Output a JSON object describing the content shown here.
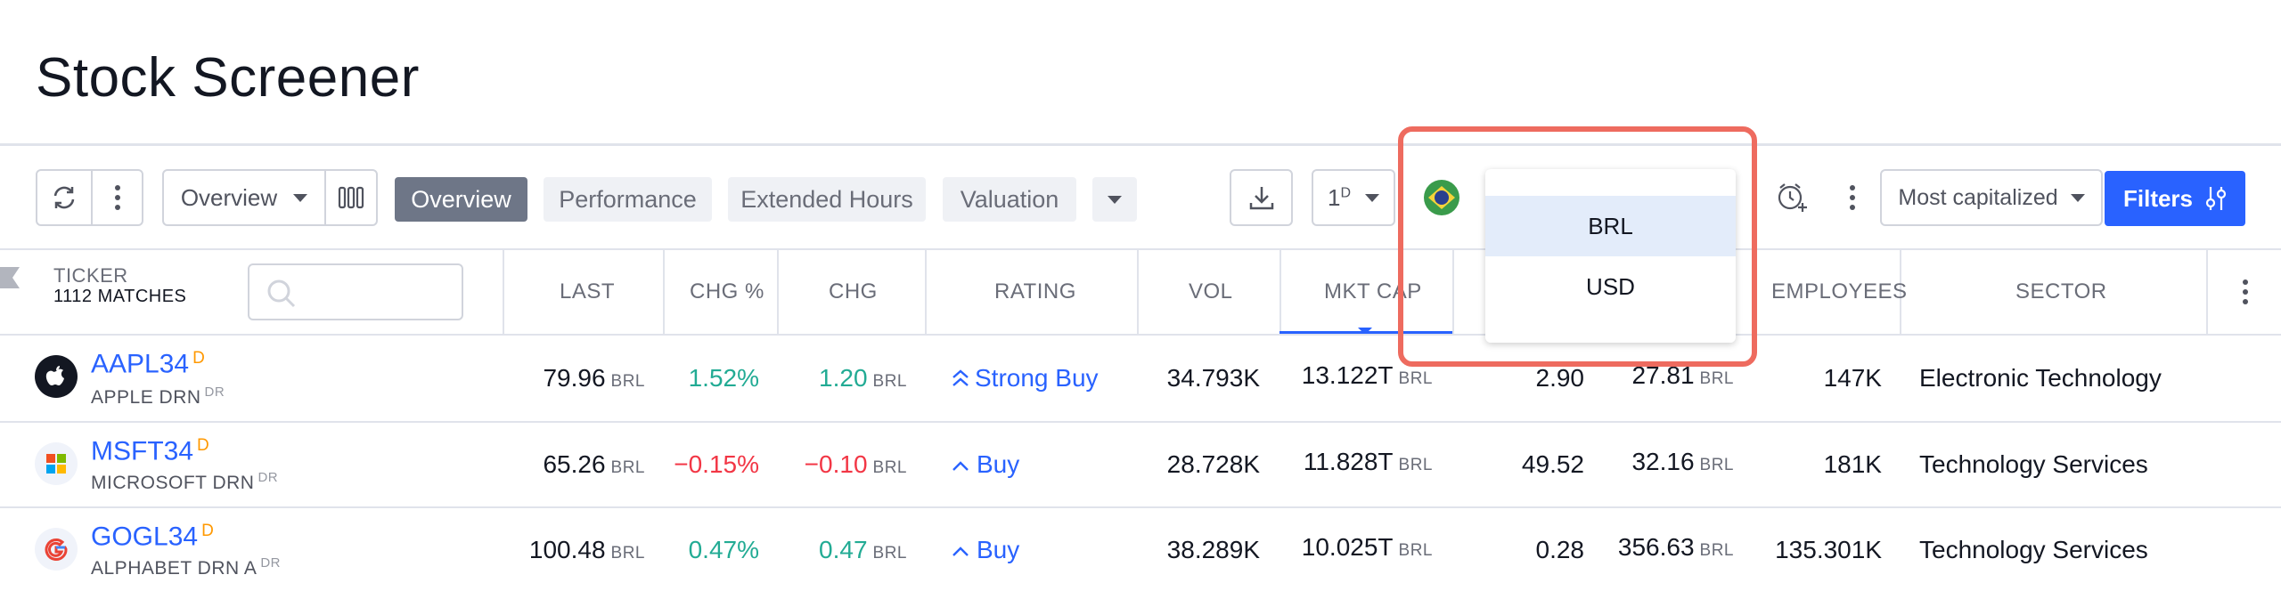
{
  "page": {
    "title": "Stock Screener"
  },
  "toolbar": {
    "view_selector": "Overview",
    "tabs": [
      "Overview",
      "Performance",
      "Extended Hours",
      "Valuation"
    ],
    "interval": "1",
    "interval_sup": "D",
    "sort_label": "Most capitalized",
    "filters_label": "Filters"
  },
  "currency_menu": {
    "options": [
      "BRL",
      "USD"
    ],
    "selected": "BRL"
  },
  "table": {
    "ticker_header": "TICKER",
    "matches": "1112 MATCHES",
    "columns": [
      "LAST",
      "CHG %",
      "CHG",
      "RATING",
      "VOL",
      "MKT CAP",
      "EMPLOYEES",
      "SECTOR"
    ],
    "rows": [
      {
        "ticker": "AAPL34",
        "badge": "D",
        "name": "APPLE DRN",
        "name_badge": "DR",
        "last": "79.96",
        "last_cur": "BRL",
        "chg_pct": "1.52%",
        "chg": "1.20",
        "chg_cur": "BRL",
        "rating_icon": "double-chevron-up-icon",
        "rating": "Strong Buy",
        "vol": "34.793K",
        "mkt_cap": "13.122T",
        "mkt_cap_cur": "BRL",
        "col_a": "2.90",
        "col_b": "27.81",
        "col_b_cur": "BRL",
        "employees": "147K",
        "sector": "Electronic Technology",
        "direction": "up"
      },
      {
        "ticker": "MSFT34",
        "badge": "D",
        "name": "MICROSOFT DRN",
        "name_badge": "DR",
        "last": "65.26",
        "last_cur": "BRL",
        "chg_pct": "−0.15%",
        "chg": "−0.10",
        "chg_cur": "BRL",
        "rating_icon": "chevron-up-icon",
        "rating": "Buy",
        "vol": "28.728K",
        "mkt_cap": "11.828T",
        "mkt_cap_cur": "BRL",
        "col_a": "49.52",
        "col_b": "32.16",
        "col_b_cur": "BRL",
        "employees": "181K",
        "sector": "Technology Services",
        "direction": "down"
      },
      {
        "ticker": "GOGL34",
        "badge": "D",
        "name": "ALPHABET DRN A",
        "name_badge": "DR",
        "last": "100.48",
        "last_cur": "BRL",
        "chg_pct": "0.47%",
        "chg": "0.47",
        "chg_cur": "BRL",
        "rating_icon": "chevron-up-icon",
        "rating": "Buy",
        "vol": "38.289K",
        "mkt_cap": "10.025T",
        "mkt_cap_cur": "BRL",
        "col_a": "0.28",
        "col_b": "356.63",
        "col_b_cur": "BRL",
        "employees": "135.301K",
        "sector": "Technology Services",
        "direction": "up"
      }
    ]
  },
  "colors": {
    "accent": "#2962ff",
    "positive": "#22ab94",
    "negative": "#f23645",
    "highlight": "#ee6b5f"
  }
}
